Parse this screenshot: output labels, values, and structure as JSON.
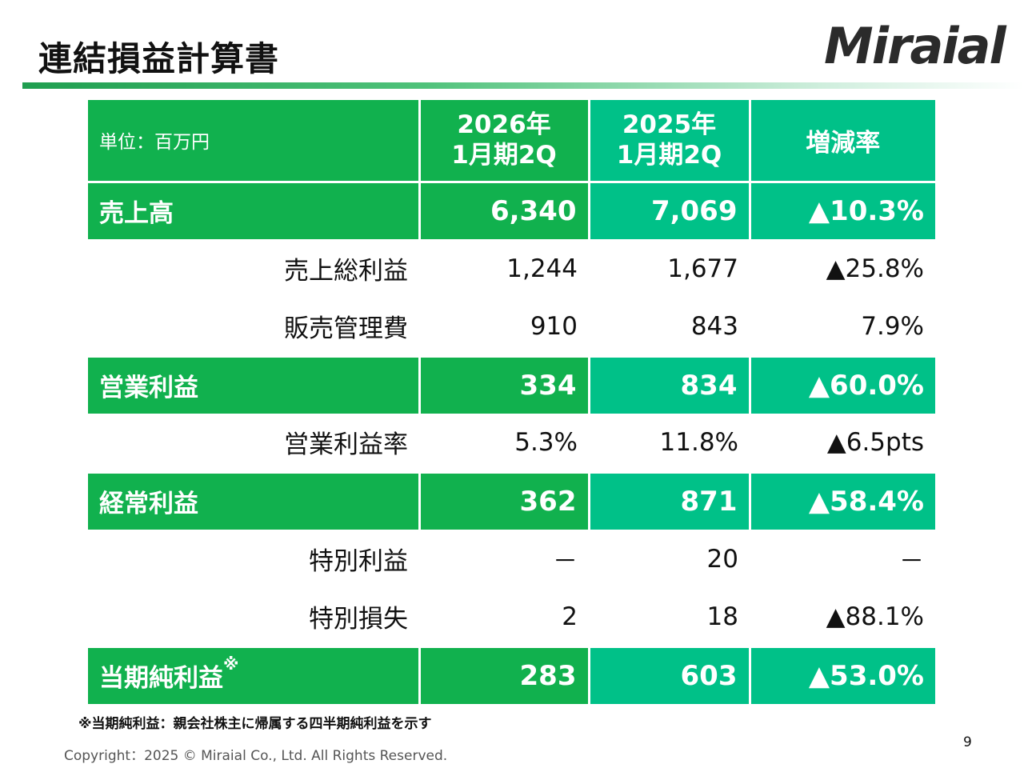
{
  "header": {
    "title": "連結損益計算書",
    "logo": "Miraial"
  },
  "table": {
    "unit_label": "単位：百万円",
    "columns": [
      {
        "line1": "2026年",
        "line2": "1月期2Q"
      },
      {
        "line1": "2025年",
        "line2": "1月期2Q"
      },
      {
        "line1": "増減率"
      }
    ],
    "rows": {
      "net_sales": {
        "label": "売上高",
        "v2026": "6,340",
        "v2025": "7,069",
        "change": "▲10.3%"
      },
      "gross_profit": {
        "label": "売上総利益",
        "v2026": "1,244",
        "v2025": "1,677",
        "change": "▲25.8%"
      },
      "sga": {
        "label": "販売管理費",
        "v2026": "910",
        "v2025": "843",
        "change": "7.9%"
      },
      "operating_income": {
        "label": "営業利益",
        "v2026": "334",
        "v2025": "834",
        "change": "▲60.0%"
      },
      "operating_margin": {
        "label": "営業利益率",
        "v2026": "5.3%",
        "v2025": "11.8%",
        "change": "▲6.5pts"
      },
      "ordinary_income": {
        "label": "経常利益",
        "v2026": "362",
        "v2025": "871",
        "change": "▲58.4%"
      },
      "extraordinary_income": {
        "label": "特別利益",
        "v2026": "－",
        "v2025": "20",
        "change": "－"
      },
      "extraordinary_loss": {
        "label": "特別損失",
        "v2026": "2",
        "v2025": "18",
        "change": "▲88.1%"
      },
      "net_income": {
        "label": "当期純利益",
        "label_mark": "※",
        "v2026": "283",
        "v2025": "603",
        "change": "▲53.0%"
      }
    }
  },
  "footer": {
    "note": "※当期純利益：親会社株主に帰属する四半期純利益を示す",
    "page_number": "9",
    "copyright": "Copyright：2025 © Miraial Co., Ltd. All Rights Reserved."
  },
  "colors": {
    "green_primary": "#11b14e",
    "green_teal": "#00c188"
  }
}
